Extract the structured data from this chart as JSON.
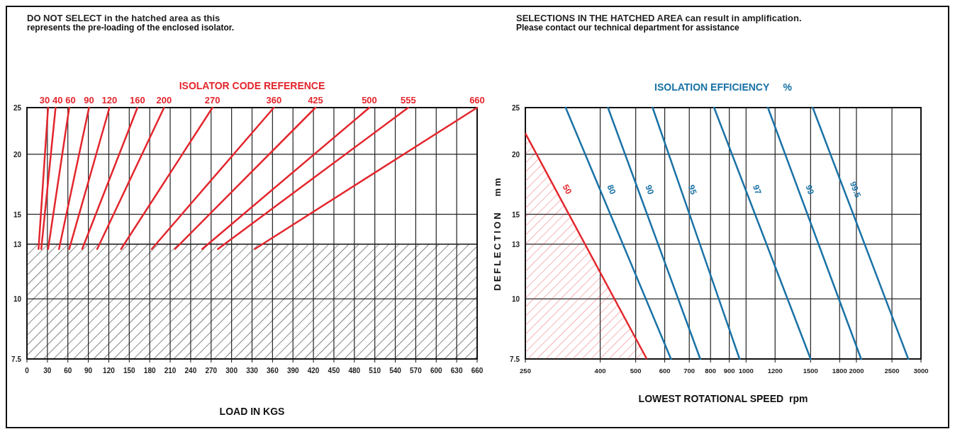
{
  "chart_data": [
    {
      "type": "line",
      "legend_title": "ISOLATOR CODE REFERENCE",
      "xlabel": "LOAD IN KGS",
      "annotations": [
        "DO NOT SELECT in the hatched area as this",
        "represents the pre-loading of the enclosed isolator."
      ],
      "xlim": [
        0,
        660
      ],
      "xticks": [
        0,
        30,
        60,
        90,
        120,
        150,
        180,
        210,
        240,
        270,
        300,
        330,
        360,
        390,
        420,
        450,
        480,
        510,
        540,
        570,
        600,
        630,
        660
      ],
      "ylim": [
        7.5,
        25
      ],
      "yticks": [
        7.5,
        10,
        13,
        15,
        20,
        25
      ],
      "log": "y",
      "grid": true,
      "bands": [
        {
          "axis": "y",
          "from": 7.5,
          "to": 13,
          "color": "#222222"
        }
      ],
      "series": [
        {
          "name": "30",
          "color": "#e3262d",
          "x": [
            17,
            31
          ],
          "values": [
            12.7,
            25
          ]
        },
        {
          "name": "40",
          "color": "#e3262d",
          "x": [
            21,
            42
          ],
          "values": [
            12.7,
            25
          ]
        },
        {
          "name": "60",
          "color": "#e3262d",
          "x": [
            31,
            62
          ],
          "values": [
            12.7,
            25
          ]
        },
        {
          "name": "90",
          "color": "#e3262d",
          "x": [
            47,
            91
          ],
          "values": [
            12.7,
            25
          ]
        },
        {
          "name": "120",
          "color": "#e3262d",
          "x": [
            62,
            121
          ],
          "values": [
            12.7,
            25
          ]
        },
        {
          "name": "160",
          "color": "#e3262d",
          "x": [
            81,
            162
          ],
          "values": [
            12.7,
            25
          ]
        },
        {
          "name": "200",
          "color": "#e3262d",
          "x": [
            103,
            201
          ],
          "values": [
            12.7,
            25
          ]
        },
        {
          "name": "270",
          "color": "#e3262d",
          "x": [
            138,
            272
          ],
          "values": [
            12.7,
            25
          ]
        },
        {
          "name": "360",
          "color": "#e3262d",
          "x": [
            183,
            362
          ],
          "values": [
            12.7,
            25
          ]
        },
        {
          "name": "425",
          "color": "#e3262d",
          "x": [
            217,
            423
          ],
          "values": [
            12.7,
            25
          ]
        },
        {
          "name": "500",
          "color": "#e3262d",
          "x": [
            257,
            502
          ],
          "values": [
            12.7,
            25
          ]
        },
        {
          "name": "555",
          "color": "#e3262d",
          "x": [
            280,
            559
          ],
          "values": [
            12.7,
            25
          ]
        },
        {
          "name": "660",
          "color": "#e3262d",
          "x": [
            334,
            660
          ],
          "values": [
            12.7,
            25
          ]
        }
      ]
    },
    {
      "type": "line",
      "legend_title": "ISOLATION EFFICIENCY     %",
      "xlabel": "LOWEST ROTATIONAL SPEED  rpm",
      "ylabel": "DEFLECTION   mm",
      "annotations": [
        "SELECTIONS IN THE HATCHED AREA can result in amplification.",
        "Please contact our technical department for assistance"
      ],
      "xlim": [
        250,
        3000
      ],
      "xticks": [
        250,
        400,
        500,
        600,
        700,
        800,
        900,
        1000,
        1200,
        1500,
        1800,
        2000,
        2500,
        3000
      ],
      "ylim": [
        7.5,
        25
      ],
      "yticks": [
        7.5,
        10,
        13,
        15,
        20,
        25
      ],
      "log": "xy",
      "grid": true,
      "series": [
        {
          "name": "50",
          "type": "area",
          "color": "#e3262d",
          "x": [
            250,
            536
          ],
          "values": [
            22.1,
            7.5
          ]
        },
        {
          "name": "80",
          "color": "#1a72a6",
          "x": [
            322,
            624
          ],
          "values": [
            25,
            7.5
          ]
        },
        {
          "name": "90",
          "color": "#1a72a6",
          "x": [
            420,
            750
          ],
          "values": [
            25,
            7.5
          ]
        },
        {
          "name": "95",
          "color": "#1a72a6",
          "x": [
            556,
            960
          ],
          "values": [
            25,
            7.5
          ]
        },
        {
          "name": "97",
          "color": "#1a72a6",
          "x": [
            818,
            1500
          ],
          "values": [
            25,
            7.5
          ]
        },
        {
          "name": "99",
          "color": "#1a72a6",
          "x": [
            1147,
            2060
          ],
          "values": [
            25,
            7.5
          ]
        },
        {
          "name": "99.5",
          "color": "#1a72a6",
          "x": [
            1520,
            2770
          ],
          "values": [
            25,
            7.5
          ]
        }
      ]
    }
  ]
}
